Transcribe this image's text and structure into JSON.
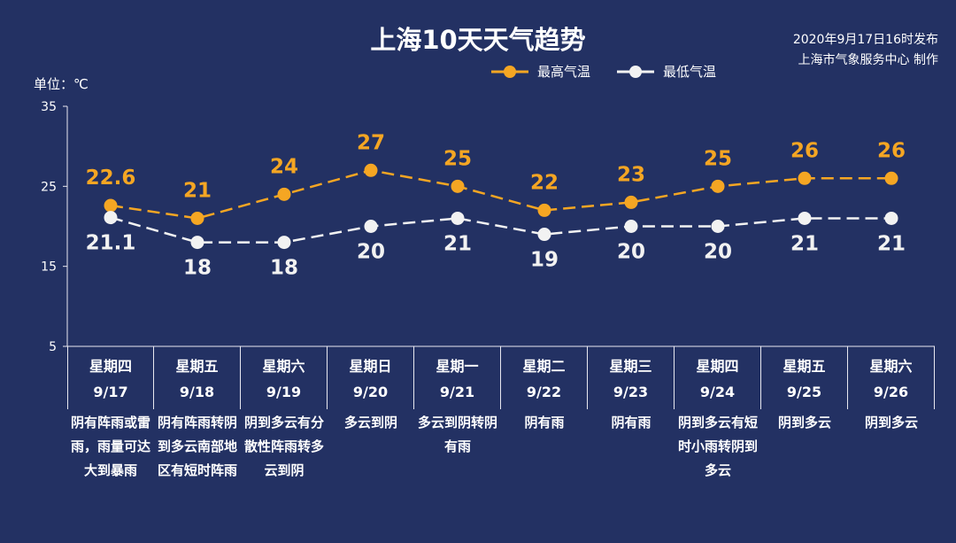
{
  "header": {
    "title": "上海10天天气趋势",
    "publish_time": "2020年9月17日16时发布",
    "publisher": "上海市气象服务中心 制作",
    "unit": "单位：℃"
  },
  "legend": {
    "high_label": "最高气温",
    "low_label": "最低气温"
  },
  "colors": {
    "background": "#233163",
    "high": "#F5A623",
    "low": "#F2F2F2",
    "axis": "#E8E8F0"
  },
  "chart_data": {
    "type": "line",
    "title": "上海10天天气趋势",
    "ylabel": "单位：℃",
    "ylim": [
      5,
      35
    ],
    "yticks": [
      5,
      15,
      25,
      35
    ],
    "categories": [
      "9/17",
      "9/18",
      "9/19",
      "9/20",
      "9/21",
      "9/22",
      "9/23",
      "9/24",
      "9/25",
      "9/26"
    ],
    "series": [
      {
        "name": "最高气温",
        "values": [
          22.6,
          21,
          24,
          27,
          25,
          22,
          23,
          25,
          26,
          26
        ]
      },
      {
        "name": "最低气温",
        "values": [
          21.1,
          18,
          18,
          20,
          21,
          19,
          20,
          20,
          21,
          21
        ]
      }
    ]
  },
  "days": [
    {
      "weekday": "星期四",
      "date": "9/17",
      "desc": "阴有阵雨或雷雨，雨量可达大到暴雨"
    },
    {
      "weekday": "星期五",
      "date": "9/18",
      "desc": "阴有阵雨转阴到多云南部地区有短时阵雨"
    },
    {
      "weekday": "星期六",
      "date": "9/19",
      "desc": "阴到多云有分散性阵雨转多云到阴"
    },
    {
      "weekday": "星期日",
      "date": "9/20",
      "desc": "多云到阴"
    },
    {
      "weekday": "星期一",
      "date": "9/21",
      "desc": "多云到阴转阴有雨"
    },
    {
      "weekday": "星期二",
      "date": "9/22",
      "desc": "阴有雨"
    },
    {
      "weekday": "星期三",
      "date": "9/23",
      "desc": "阴有雨"
    },
    {
      "weekday": "星期四",
      "date": "9/24",
      "desc": "阴到多云有短时小雨转阴到多云"
    },
    {
      "weekday": "星期五",
      "date": "9/25",
      "desc": "阴到多云"
    },
    {
      "weekday": "星期六",
      "date": "9/26",
      "desc": "阴到多云"
    }
  ]
}
